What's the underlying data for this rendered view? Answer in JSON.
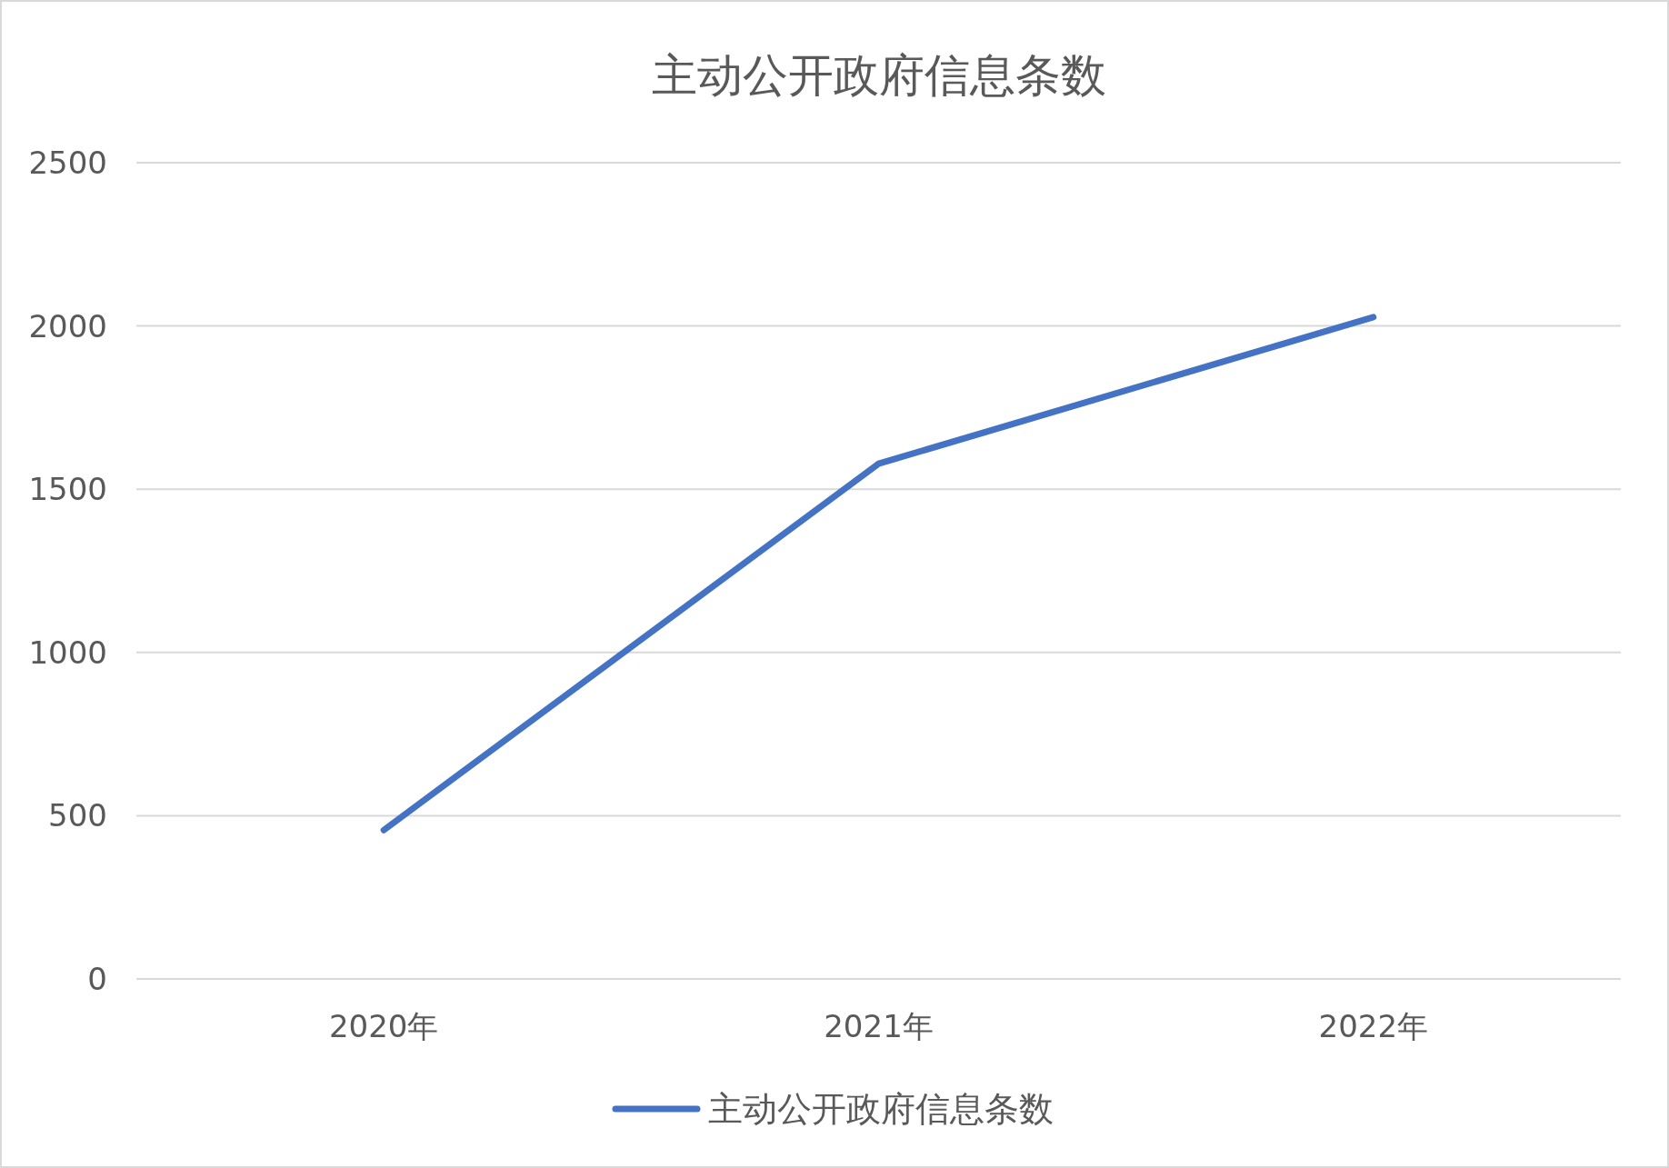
{
  "chart_data": {
    "type": "line",
    "title": "主动公开政府信息条数",
    "categories": [
      "2020年",
      "2021年",
      "2022年"
    ],
    "series": [
      {
        "name": "主动公开政府信息条数",
        "color": "#4472c4",
        "values": [
          456,
          1578,
          2027
        ]
      }
    ],
    "ylim": [
      0,
      2500
    ],
    "yticks": [
      0,
      500,
      1000,
      1500,
      2000,
      2500
    ],
    "grid": "y",
    "legend": "bottom"
  }
}
